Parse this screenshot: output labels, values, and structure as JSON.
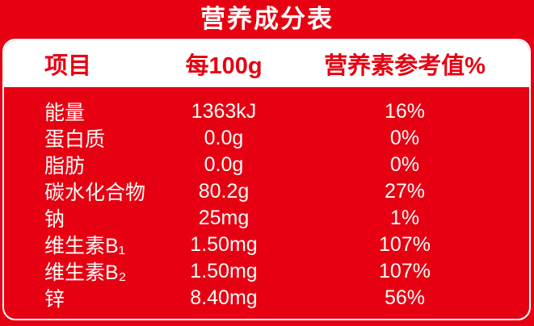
{
  "title": "营养成分表",
  "table": {
    "headers": [
      "项目",
      "每100g",
      "营养素参考值%"
    ],
    "rows": [
      {
        "name": "能量",
        "amount": "1363kJ",
        "nrv": "16%"
      },
      {
        "name": "蛋白质",
        "amount": "0.0g",
        "nrv": "0%"
      },
      {
        "name": "脂肪",
        "amount": "0.0g",
        "nrv": "0%"
      },
      {
        "name": "碳水化合物",
        "amount": "80.2g",
        "nrv": "27%"
      },
      {
        "name": "钠",
        "amount": "25mg",
        "nrv": "1%"
      },
      {
        "name": "维生素B₁",
        "amount": "1.50mg",
        "nrv": "107%"
      },
      {
        "name": "维生素B₂",
        "amount": "1.50mg",
        "nrv": "107%"
      },
      {
        "name": "锌",
        "amount": "8.40mg",
        "nrv": "56%"
      }
    ]
  },
  "colors": {
    "background_red": "#e60012",
    "panel_outline_white": "#ffffff",
    "header_fill_white": "#ffffff",
    "header_text_red": "#e60012",
    "body_text_white": "#ffffff"
  }
}
